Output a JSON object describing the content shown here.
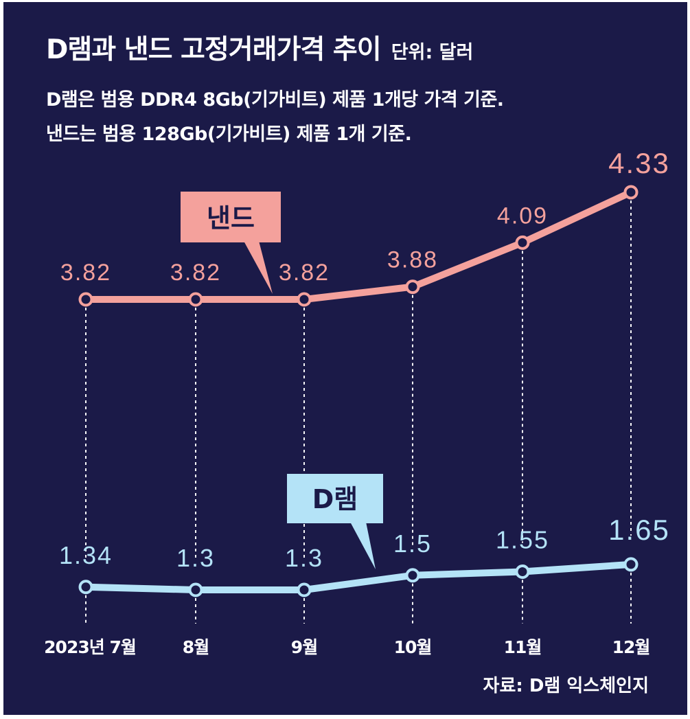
{
  "header": {
    "title": "D램과 낸드 고정거래가격 추이",
    "unit": "단위: 달러",
    "note_line1": "D램은 범용 DDR4 8Gb(기가비트) 제품 1개당 가격 기준.",
    "note_line2": "낸드는 범용 128Gb(기가비트) 제품 1개 기준."
  },
  "source": "자료: D램 익스체인지",
  "colors": {
    "background": "#1b1a48",
    "nand": "#f4a19c",
    "dram": "#b4e3f7"
  },
  "chart_data": {
    "type": "line",
    "categories": [
      "2023년 7월",
      "8월",
      "9월",
      "10월",
      "11월",
      "12월"
    ],
    "series": [
      {
        "name": "낸드",
        "values": [
          3.82,
          3.82,
          3.82,
          3.88,
          4.09,
          4.33
        ],
        "labels": [
          "3.82",
          "3.82",
          "3.82",
          "3.88",
          "4.09",
          "4.33"
        ]
      },
      {
        "name": "D램",
        "values": [
          1.34,
          1.3,
          1.3,
          1.5,
          1.55,
          1.65
        ],
        "labels": [
          "1.34",
          "1.3",
          "1.3",
          "1.5",
          "1.55",
          "1.65"
        ]
      }
    ],
    "title": "D램과 낸드 고정거래가격 추이",
    "xlabel": "",
    "ylabel": "달러",
    "grid": "vertical dotted lines at each month",
    "legend": "callout labels on each line"
  }
}
